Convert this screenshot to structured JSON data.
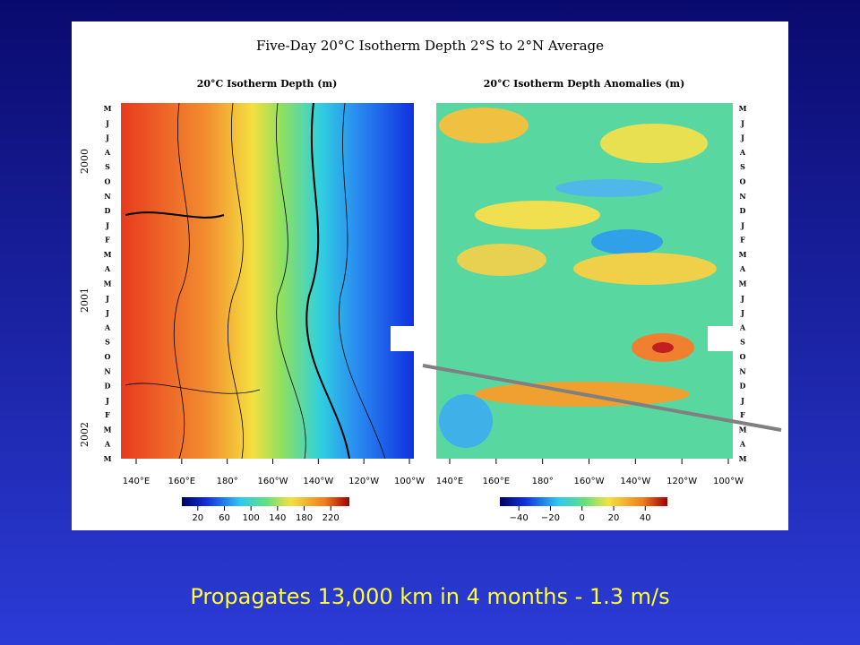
{
  "slide": {
    "figure": {
      "title": "Five-Day 20°C Isotherm Depth  2°S to 2°N Average",
      "panels": [
        {
          "title": "20°C Isotherm Depth (m)",
          "xticks": [
            "140°E",
            "160°E",
            "180°",
            "160°W",
            "140°W",
            "120°W",
            "100°W"
          ],
          "colorbar_ticks": [
            "20",
            "60",
            "100",
            "140",
            "180",
            "220"
          ]
        },
        {
          "title": "20°C Isotherm Depth Anomalies (m)",
          "xticks": [
            "140°E",
            "160°E",
            "180°",
            "160°W",
            "140°W",
            "120°W",
            "100°W"
          ],
          "colorbar_ticks": [
            "−40",
            "−20",
            "0",
            "20",
            "40"
          ]
        }
      ],
      "months": [
        "M",
        "J",
        "J",
        "A",
        "S",
        "O",
        "N",
        "D",
        "J",
        "F",
        "M",
        "A",
        "M",
        "J",
        "J",
        "A",
        "S",
        "O",
        "N",
        "D",
        "J",
        "F",
        "M",
        "A",
        "M"
      ],
      "years": [
        "2000",
        "2001",
        "2002"
      ]
    },
    "caption": "Propagates 13,000 km in 4 months  -  1.3 m/s"
  }
}
